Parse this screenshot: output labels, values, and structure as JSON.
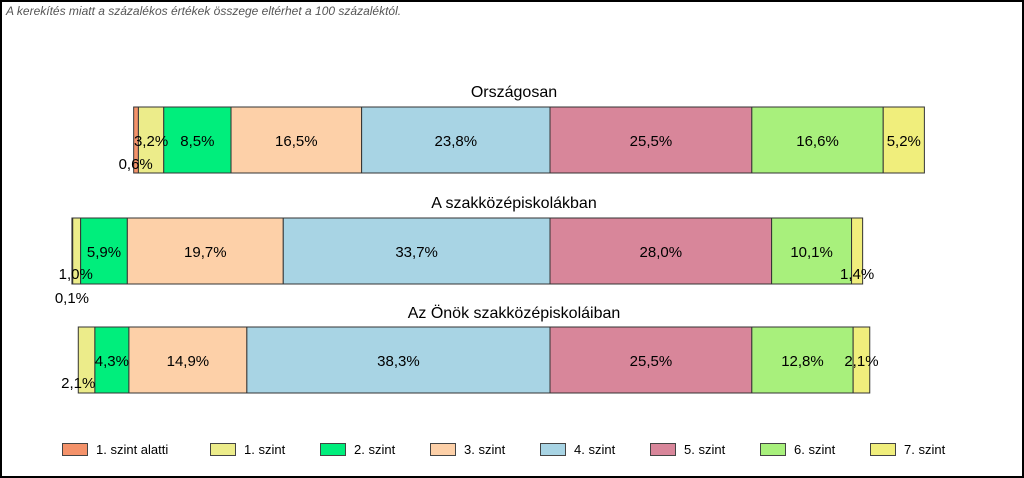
{
  "note": "A kerekítés miatt a  százalékos értékek összege eltérhet a 100 százaléktól.",
  "colors": [
    "#f4926a",
    "#ecec8a",
    "#00ee7c",
    "#fdd0a8",
    "#a8d4e4",
    "#d8869a",
    "#a8f07c",
    "#f0ee7c"
  ],
  "chart_data": {
    "type": "bar",
    "orientation": "horizontal",
    "stacked": true,
    "legend_position": "bottom",
    "series_names": [
      "1. szint alatti",
      "1. szint",
      "2. szint",
      "3. szint",
      "4. szint",
      "5. szint",
      "6. szint",
      "7. szint"
    ],
    "groups": [
      {
        "title": "Országosan",
        "values": [
          0.6,
          3.2,
          8.5,
          16.5,
          23.8,
          25.5,
          16.6,
          5.2
        ],
        "labels": [
          "0,6%",
          "3,2%",
          "8,5%",
          "16,5%",
          "23,8%",
          "25,5%",
          "16,6%",
          "5,2%"
        ]
      },
      {
        "title": "A szakközépiskolákban",
        "values": [
          0.1,
          1.0,
          5.9,
          19.7,
          33.7,
          28.0,
          10.1,
          1.4
        ],
        "labels": [
          "0,1%",
          "1,0%",
          "5,9%",
          "19,7%",
          "33,7%",
          "28,0%",
          "10,1%",
          "1,4%"
        ]
      },
      {
        "title": "Az Önök szakközépiskoláiban",
        "values": [
          0.0,
          2.1,
          4.3,
          14.9,
          38.3,
          25.5,
          12.8,
          2.1
        ],
        "labels": [
          "",
          "2,1%",
          "4,3%",
          "14,9%",
          "38,3%",
          "25,5%",
          "12,8%",
          "2,1%"
        ]
      }
    ]
  }
}
